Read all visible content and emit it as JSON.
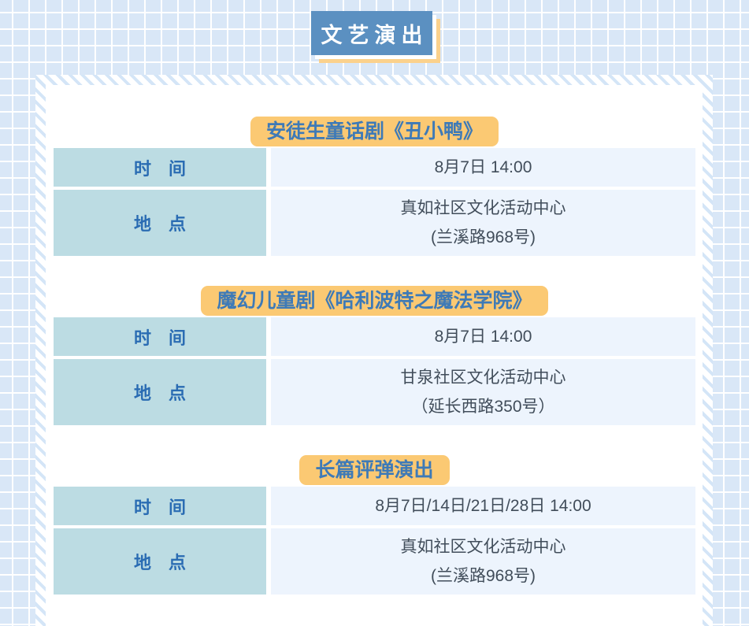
{
  "header": {
    "title": "文艺演出"
  },
  "events": [
    {
      "title": "安徒生童话剧《丑小鸭》",
      "rows": [
        {
          "label": "时　间",
          "lines": [
            "8月7日 14:00"
          ]
        },
        {
          "label": "地　点",
          "lines": [
            "真如社区文化活动中心",
            "(兰溪路968号)"
          ]
        }
      ]
    },
    {
      "title": "魔幻儿童剧《哈利波特之魔法学院》",
      "rows": [
        {
          "label": "时　间",
          "lines": [
            "8月7日 14:00"
          ]
        },
        {
          "label": "地　点",
          "lines": [
            "甘泉社区文化活动中心",
            "（延长西路350号）"
          ]
        }
      ]
    },
    {
      "title": "长篇评弹演出",
      "rows": [
        {
          "label": "时　间",
          "lines": [
            "8月7日/14日/21日/28日 14:00"
          ]
        },
        {
          "label": "地　点",
          "lines": [
            "真如社区文化活动中心",
            "(兰溪路968号)"
          ]
        }
      ]
    }
  ],
  "colors": {
    "page_background": "#d9e7f7",
    "grid_line": "#ffffff",
    "banner_blue": "#5b90c1",
    "banner_shadow_yellow": "#fbd18c",
    "badge_yellow": "#fbc973",
    "badge_text_blue": "#3e7ab7",
    "label_cell_bg": "#bcdce3",
    "label_text_blue": "#2a6cb3",
    "value_cell_bg": "#edf4fd",
    "value_text": "#414d5a",
    "card_bg": "#ffffff",
    "stripe_blue": "#d4e5f7"
  }
}
